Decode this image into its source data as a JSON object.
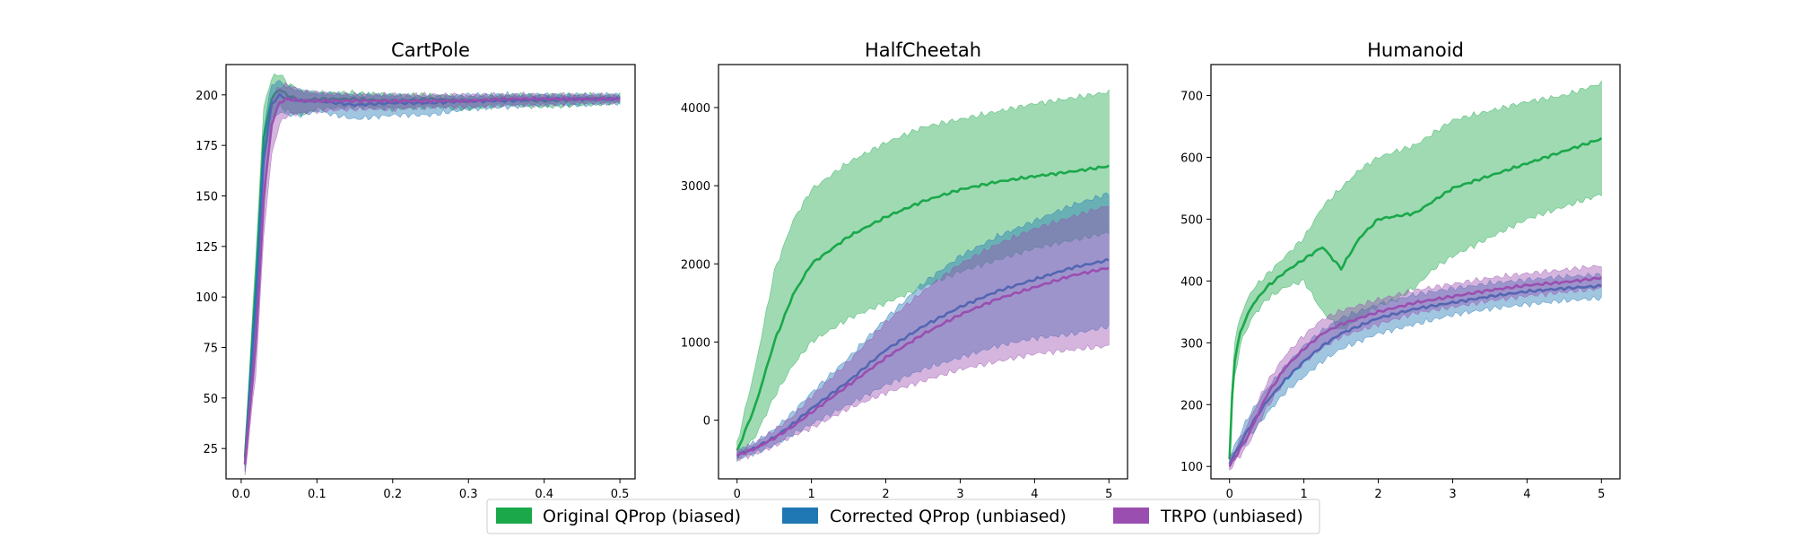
{
  "legend": {
    "placement": "bottom-center",
    "entries": [
      {
        "label": "Original QProp (biased)",
        "color": "#1aa84a"
      },
      {
        "label": "Corrected QProp (unbiased)",
        "color": "#1f78b4"
      },
      {
        "label": "TRPO (unbiased)",
        "color": "#9a4fb0"
      }
    ]
  },
  "chart_data": [
    {
      "type": "line",
      "title": "CartPole",
      "xlabel": "",
      "ylabel": "",
      "xlim": [
        -0.02,
        0.52
      ],
      "ylim": [
        10,
        215
      ],
      "xticks": [
        0.0,
        0.1,
        0.2,
        0.3,
        0.4,
        0.5
      ],
      "xtick_labels": [
        "0.0",
        "0.1",
        "0.2",
        "0.3",
        "0.4",
        "0.5"
      ],
      "yticks": [
        25,
        50,
        75,
        100,
        125,
        150,
        175,
        200
      ],
      "ytick_labels": [
        "25",
        "50",
        "75",
        "100",
        "125",
        "150",
        "175",
        "200"
      ],
      "grid": false,
      "series": [
        {
          "name": "Original QProp (biased)",
          "color": "#1aa84a",
          "x": [
            0.005,
            0.02,
            0.03,
            0.04,
            0.05,
            0.06,
            0.08,
            0.1,
            0.15,
            0.2,
            0.25,
            0.3,
            0.35,
            0.4,
            0.45,
            0.5
          ],
          "mean": [
            20,
            110,
            180,
            198,
            203,
            200,
            197,
            198,
            198,
            197,
            198,
            197,
            198,
            197,
            198,
            198
          ],
          "lower": [
            15,
            95,
            165,
            188,
            195,
            192,
            190,
            193,
            194,
            193,
            194,
            193,
            195,
            194,
            195,
            196
          ],
          "upper": [
            25,
            125,
            195,
            208,
            211,
            206,
            202,
            201,
            201,
            200,
            200,
            199,
            200,
            200,
            200,
            200
          ]
        },
        {
          "name": "Corrected QProp (unbiased)",
          "color": "#1f78b4",
          "x": [
            0.005,
            0.02,
            0.03,
            0.04,
            0.05,
            0.06,
            0.08,
            0.1,
            0.15,
            0.2,
            0.25,
            0.3,
            0.35,
            0.4,
            0.45,
            0.5
          ],
          "mean": [
            18,
            100,
            170,
            195,
            200,
            198,
            197,
            197,
            195,
            196,
            196,
            197,
            197,
            198,
            198,
            198
          ],
          "lower": [
            13,
            85,
            155,
            185,
            192,
            190,
            190,
            192,
            188,
            190,
            190,
            193,
            194,
            195,
            195,
            196
          ],
          "upper": [
            23,
            115,
            185,
            205,
            207,
            204,
            202,
            201,
            200,
            200,
            199,
            200,
            200,
            200,
            200,
            200
          ]
        },
        {
          "name": "TRPO (unbiased)",
          "color": "#9a4fb0",
          "x": [
            0.005,
            0.02,
            0.03,
            0.04,
            0.05,
            0.06,
            0.08,
            0.1,
            0.15,
            0.2,
            0.25,
            0.3,
            0.35,
            0.4,
            0.45,
            0.5
          ],
          "mean": [
            17,
            80,
            150,
            185,
            196,
            198,
            197,
            197,
            197,
            197,
            197,
            197,
            198,
            198,
            198,
            198
          ],
          "lower": [
            12,
            65,
            132,
            170,
            185,
            190,
            191,
            192,
            193,
            193,
            194,
            194,
            195,
            195,
            196,
            196
          ],
          "upper": [
            22,
            95,
            168,
            198,
            204,
            205,
            202,
            201,
            200,
            200,
            200,
            200,
            200,
            200,
            200,
            200
          ]
        }
      ]
    },
    {
      "type": "line",
      "title": "HalfCheetah",
      "xlabel": "",
      "ylabel": "",
      "xlim": [
        -0.25,
        5.25
      ],
      "ylim": [
        -750,
        4550
      ],
      "xticks": [
        0,
        1,
        2,
        3,
        4,
        5
      ],
      "xtick_labels": [
        "0",
        "1",
        "2",
        "3",
        "4",
        "5"
      ],
      "yticks": [
        0,
        1000,
        2000,
        3000,
        4000
      ],
      "ytick_labels": [
        "0",
        "1000",
        "2000",
        "3000",
        "4000"
      ],
      "grid": false,
      "series": [
        {
          "name": "Original QProp (biased)",
          "color": "#1aa84a",
          "x": [
            0,
            0.25,
            0.5,
            0.75,
            1,
            1.5,
            2,
            2.5,
            3,
            3.5,
            4,
            4.5,
            5
          ],
          "mean": [
            -400,
            200,
            1000,
            1600,
            2000,
            2350,
            2600,
            2800,
            2950,
            3050,
            3120,
            3180,
            3250
          ],
          "lower": [
            -500,
            -200,
            300,
            700,
            1000,
            1300,
            1500,
            1700,
            1900,
            2050,
            2200,
            2300,
            2400
          ],
          "upper": [
            -300,
            700,
            1900,
            2550,
            2950,
            3300,
            3550,
            3750,
            3850,
            3950,
            4050,
            4120,
            4200
          ]
        },
        {
          "name": "Corrected QProp (unbiased)",
          "color": "#1f78b4",
          "x": [
            0,
            0.25,
            0.5,
            0.75,
            1,
            1.5,
            2,
            2.5,
            3,
            3.5,
            4,
            4.5,
            5
          ],
          "mean": [
            -450,
            -350,
            -220,
            -50,
            150,
            500,
            900,
            1200,
            1450,
            1650,
            1800,
            1950,
            2050
          ],
          "lower": [
            -500,
            -420,
            -320,
            -180,
            -50,
            200,
            450,
            650,
            800,
            950,
            1050,
            1100,
            1200
          ],
          "upper": [
            -400,
            -280,
            -120,
            100,
            350,
            800,
            1300,
            1750,
            2100,
            2350,
            2550,
            2750,
            2900
          ]
        },
        {
          "name": "TRPO (unbiased)",
          "color": "#9a4fb0",
          "x": [
            0,
            0.25,
            0.5,
            0.75,
            1,
            1.5,
            2,
            2.5,
            3,
            3.5,
            4,
            4.5,
            5
          ],
          "mean": [
            -450,
            -360,
            -230,
            -80,
            100,
            450,
            800,
            1100,
            1350,
            1550,
            1700,
            1850,
            1950
          ],
          "lower": [
            -500,
            -430,
            -330,
            -200,
            -100,
            150,
            350,
            500,
            650,
            750,
            850,
            900,
            950
          ],
          "upper": [
            -400,
            -290,
            -130,
            50,
            300,
            750,
            1250,
            1650,
            2000,
            2250,
            2450,
            2600,
            2750
          ]
        }
      ]
    },
    {
      "type": "line",
      "title": "Humanoid",
      "xlabel": "",
      "ylabel": "",
      "xlim": [
        -0.25,
        5.25
      ],
      "ylim": [
        80,
        750
      ],
      "xticks": [
        0,
        1,
        2,
        3,
        4,
        5
      ],
      "xtick_labels": [
        "0",
        "1",
        "2",
        "3",
        "4",
        "5"
      ],
      "yticks": [
        100,
        200,
        300,
        400,
        500,
        600,
        700
      ],
      "ytick_labels": [
        "100",
        "200",
        "300",
        "400",
        "500",
        "600",
        "700"
      ],
      "grid": false,
      "series": [
        {
          "name": "Original QProp (biased)",
          "color": "#1aa84a",
          "x": [
            0,
            0.05,
            0.15,
            0.3,
            0.5,
            0.75,
            1,
            1.25,
            1.5,
            1.75,
            2,
            2.25,
            2.5,
            2.75,
            3,
            3.5,
            4,
            4.5,
            5
          ],
          "mean": [
            110,
            260,
            320,
            360,
            390,
            415,
            435,
            455,
            420,
            470,
            500,
            505,
            510,
            530,
            550,
            570,
            590,
            610,
            630
          ],
          "lower": [
            100,
            230,
            300,
            340,
            370,
            390,
            400,
            350,
            320,
            340,
            360,
            370,
            390,
            420,
            440,
            470,
            500,
            520,
            540
          ],
          "upper": [
            120,
            290,
            345,
            385,
            410,
            440,
            470,
            520,
            550,
            580,
            600,
            610,
            620,
            640,
            660,
            675,
            690,
            700,
            720
          ]
        },
        {
          "name": "Corrected QProp (unbiased)",
          "color": "#1f78b4",
          "x": [
            0,
            0.25,
            0.5,
            0.75,
            1,
            1.25,
            1.5,
            2,
            2.5,
            3,
            3.5,
            4,
            4.5,
            5
          ],
          "mean": [
            105,
            160,
            205,
            240,
            270,
            295,
            315,
            340,
            355,
            365,
            375,
            383,
            388,
            392
          ],
          "lower": [
            100,
            145,
            185,
            220,
            245,
            270,
            290,
            315,
            330,
            345,
            355,
            362,
            368,
            372
          ],
          "upper": [
            115,
            180,
            225,
            262,
            295,
            320,
            340,
            362,
            378,
            388,
            396,
            402,
            407,
            410
          ]
        },
        {
          "name": "TRPO (unbiased)",
          "color": "#9a4fb0",
          "x": [
            0,
            0.25,
            0.5,
            0.75,
            1,
            1.25,
            1.5,
            2,
            2.5,
            3,
            3.5,
            4,
            4.5,
            5
          ],
          "mean": [
            100,
            150,
            215,
            260,
            290,
            315,
            330,
            350,
            365,
            375,
            385,
            393,
            398,
            405
          ],
          "lower": [
            95,
            135,
            195,
            240,
            268,
            292,
            310,
            330,
            348,
            358,
            368,
            376,
            382,
            388
          ],
          "upper": [
            110,
            170,
            235,
            280,
            312,
            338,
            352,
            370,
            385,
            395,
            405,
            412,
            418,
            425
          ]
        }
      ]
    }
  ]
}
